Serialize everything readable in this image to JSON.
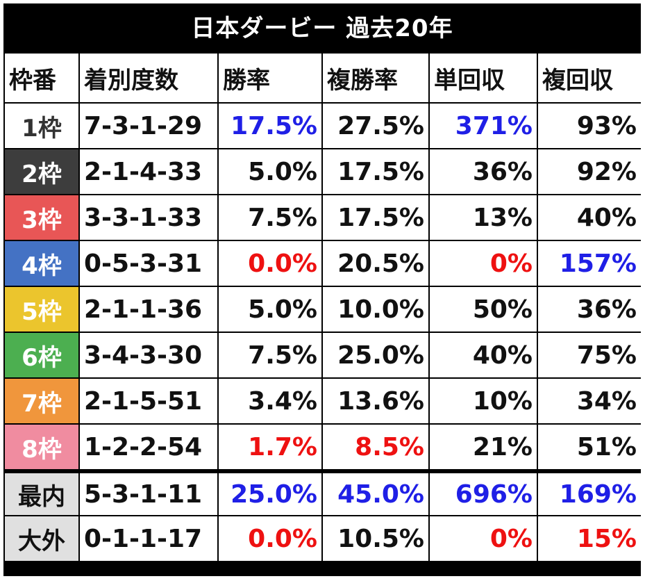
{
  "title": "日本ダービー 過去20年",
  "headers": [
    "枠番",
    "着別度数",
    "勝率",
    "複勝率",
    "単回収",
    "複回収"
  ],
  "colors": {
    "blue": "#1f1fe6",
    "red": "#ee1111",
    "black": "#111111"
  },
  "rows": [
    {
      "gate": "1枠",
      "gate_bg": "#ffffff",
      "gate_fg": "#333333",
      "record": "7-3-1-29",
      "win": "17.5%",
      "win_color": "blue",
      "place": "27.5%",
      "place_color": "black",
      "tan": "371%",
      "tan_color": "blue",
      "fuku": "93%",
      "fuku_color": "black"
    },
    {
      "gate": "2枠",
      "gate_bg": "#3d3d3d",
      "gate_fg": "#ffffff",
      "record": "2-1-4-33",
      "win": "5.0%",
      "win_color": "black",
      "place": "17.5%",
      "place_color": "black",
      "tan": "36%",
      "tan_color": "black",
      "fuku": "92%",
      "fuku_color": "black"
    },
    {
      "gate": "3枠",
      "gate_bg": "#e85656",
      "gate_fg": "#ffffff",
      "record": "3-3-1-33",
      "win": "7.5%",
      "win_color": "black",
      "place": "17.5%",
      "place_color": "black",
      "tan": "13%",
      "tan_color": "black",
      "fuku": "40%",
      "fuku_color": "black"
    },
    {
      "gate": "4枠",
      "gate_bg": "#4472c4",
      "gate_fg": "#ffffff",
      "record": "0-5-3-31",
      "win": "0.0%",
      "win_color": "red",
      "place": "20.5%",
      "place_color": "black",
      "tan": "0%",
      "tan_color": "red",
      "fuku": "157%",
      "fuku_color": "blue"
    },
    {
      "gate": "5枠",
      "gate_bg": "#ebc52d",
      "gate_fg": "#ffffff",
      "record": "2-1-1-36",
      "win": "5.0%",
      "win_color": "black",
      "place": "10.0%",
      "place_color": "black",
      "tan": "50%",
      "tan_color": "black",
      "fuku": "36%",
      "fuku_color": "black"
    },
    {
      "gate": "6枠",
      "gate_bg": "#4caf50",
      "gate_fg": "#ffffff",
      "record": "3-4-3-30",
      "win": "7.5%",
      "win_color": "black",
      "place": "25.0%",
      "place_color": "black",
      "tan": "40%",
      "tan_color": "black",
      "fuku": "75%",
      "fuku_color": "black"
    },
    {
      "gate": "7枠",
      "gate_bg": "#f0963c",
      "gate_fg": "#ffffff",
      "record": "2-1-5-51",
      "win": "3.4%",
      "win_color": "black",
      "place": "13.6%",
      "place_color": "black",
      "tan": "10%",
      "tan_color": "black",
      "fuku": "34%",
      "fuku_color": "black"
    },
    {
      "gate": "8枠",
      "gate_bg": "#f08ca0",
      "gate_fg": "#ffffff",
      "record": "1-2-2-54",
      "win": "1.7%",
      "win_color": "red",
      "place": "8.5%",
      "place_color": "red",
      "tan": "21%",
      "tan_color": "black",
      "fuku": "51%",
      "fuku_color": "black"
    }
  ],
  "special_rows": [
    {
      "label": "最内",
      "record": "5-3-1-11",
      "win": "25.0%",
      "win_color": "blue",
      "place": "45.0%",
      "place_color": "blue",
      "tan": "696%",
      "tan_color": "blue",
      "fuku": "169%",
      "fuku_color": "blue"
    },
    {
      "label": "大外",
      "record": "0-1-1-17",
      "win": "0.0%",
      "win_color": "red",
      "place": "10.5%",
      "place_color": "black",
      "tan": "0%",
      "tan_color": "red",
      "fuku": "15%",
      "fuku_color": "red"
    }
  ]
}
